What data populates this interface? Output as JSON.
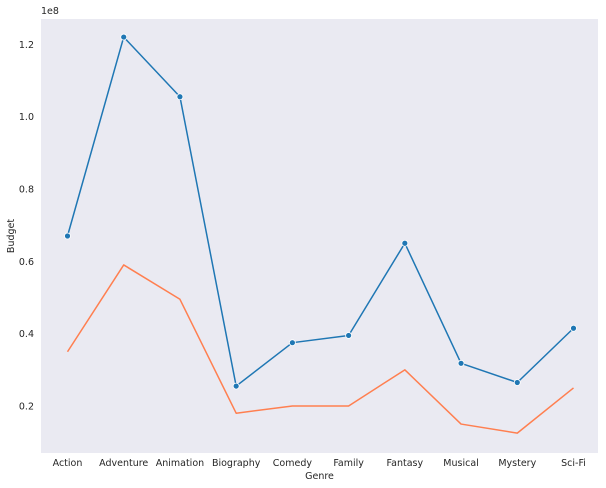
{
  "chart_data": {
    "type": "line",
    "title": "",
    "xlabel": "Genre",
    "ylabel": "Budget",
    "y_offset_label": "1e8",
    "categories": [
      "Action",
      "Adventure",
      "Animation",
      "Biography",
      "Comedy",
      "Family",
      "Fantasy",
      "Musical",
      "Mystery",
      "Sci-Fi"
    ],
    "y_ticks": [
      0.2,
      0.4,
      0.6,
      0.8,
      1.0,
      1.2
    ],
    "y_tick_labels": [
      "0.2",
      "0.4",
      "0.6",
      "0.8",
      "1.0",
      "1.2"
    ],
    "y_scale": 100000000,
    "ylim": [
      7000000,
      127000000
    ],
    "grid": false,
    "legend": "none",
    "series": [
      {
        "color": "#1f77b4",
        "marker": "circle",
        "values": [
          67000000,
          122000000,
          105500000,
          25500000,
          37500000,
          39500000,
          65000000,
          31800000,
          26500000,
          41500000
        ]
      },
      {
        "color": "#ff7f50",
        "marker": "none",
        "values": [
          35000000,
          59000000,
          49500000,
          18000000,
          20000000,
          20000000,
          30000000,
          15000000,
          12500000,
          25000000
        ]
      }
    ],
    "colors": {
      "plot_background": "#eaeaf2",
      "text": "#262626"
    }
  }
}
